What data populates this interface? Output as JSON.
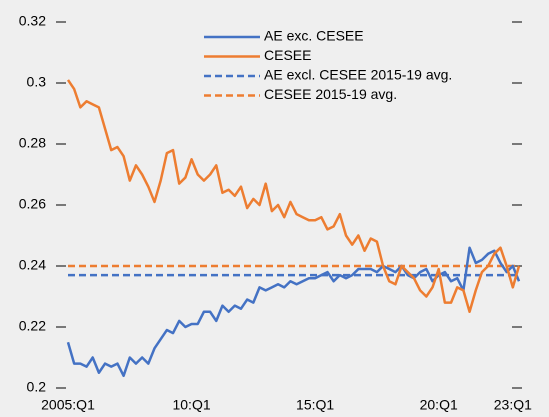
{
  "chart_data": {
    "type": "line",
    "x": [
      2005,
      2005.25,
      2005.5,
      2005.75,
      2006,
      2006.25,
      2006.5,
      2006.75,
      2007,
      2007.25,
      2007.5,
      2007.75,
      2008,
      2008.25,
      2008.5,
      2008.75,
      2009,
      2009.25,
      2009.5,
      2009.75,
      2010,
      2010.25,
      2010.5,
      2010.75,
      2011,
      2011.25,
      2011.5,
      2011.75,
      2012,
      2012.25,
      2012.5,
      2012.75,
      2013,
      2013.25,
      2013.5,
      2013.75,
      2014,
      2014.25,
      2014.5,
      2014.75,
      2015,
      2015.25,
      2015.5,
      2015.75,
      2016,
      2016.25,
      2016.5,
      2016.75,
      2017,
      2017.25,
      2017.5,
      2017.75,
      2018,
      2018.25,
      2018.5,
      2018.75,
      2019,
      2019.25,
      2019.5,
      2019.75,
      2020,
      2020.25,
      2020.5,
      2020.75,
      2021,
      2021.25,
      2021.5,
      2021.75,
      2022,
      2022.25,
      2022.5,
      2022.75,
      2023,
      2023.25
    ],
    "series": [
      {
        "name": "AE exc. CESEE",
        "color": "#4472c4",
        "values": [
          0.215,
          0.208,
          0.208,
          0.207,
          0.21,
          0.205,
          0.208,
          0.207,
          0.208,
          0.204,
          0.21,
          0.208,
          0.21,
          0.208,
          0.213,
          0.216,
          0.219,
          0.218,
          0.222,
          0.22,
          0.221,
          0.221,
          0.225,
          0.225,
          0.222,
          0.227,
          0.225,
          0.227,
          0.226,
          0.229,
          0.228,
          0.233,
          0.232,
          0.233,
          0.234,
          0.233,
          0.235,
          0.234,
          0.235,
          0.236,
          0.236,
          0.237,
          0.238,
          0.235,
          0.237,
          0.236,
          0.237,
          0.239,
          0.239,
          0.239,
          0.238,
          0.24,
          0.239,
          0.238,
          0.24,
          0.237,
          0.236,
          0.238,
          0.239,
          0.235,
          0.237,
          0.238,
          0.235,
          0.236,
          0.232,
          0.246,
          0.241,
          0.242,
          0.244,
          0.245,
          0.241,
          0.238,
          0.24,
          0.235
        ]
      },
      {
        "name": "CESEE",
        "color": "#ed7d31",
        "values": [
          0.301,
          0.298,
          0.292,
          0.294,
          0.293,
          0.292,
          0.285,
          0.278,
          0.279,
          0.276,
          0.268,
          0.273,
          0.27,
          0.266,
          0.261,
          0.268,
          0.277,
          0.278,
          0.267,
          0.269,
          0.275,
          0.27,
          0.268,
          0.27,
          0.273,
          0.264,
          0.265,
          0.263,
          0.266,
          0.259,
          0.262,
          0.26,
          0.267,
          0.258,
          0.26,
          0.256,
          0.261,
          0.257,
          0.256,
          0.255,
          0.255,
          0.256,
          0.252,
          0.253,
          0.257,
          0.25,
          0.247,
          0.25,
          0.245,
          0.249,
          0.248,
          0.24,
          0.235,
          0.234,
          0.24,
          0.238,
          0.236,
          0.232,
          0.23,
          0.233,
          0.239,
          0.228,
          0.228,
          0.233,
          0.232,
          0.225,
          0.232,
          0.238,
          0.24,
          0.244,
          0.246,
          0.24,
          0.233,
          0.24
        ]
      }
    ],
    "reference_lines": [
      {
        "name": "AE excl. CESEE 2015-19 avg.",
        "color": "#4472c4",
        "value": 0.237
      },
      {
        "name": "CESEE 2015-19 avg.",
        "color": "#ed7d31",
        "value": 0.24
      }
    ],
    "xlim": [
      2005,
      2023.25
    ],
    "xticks": [
      {
        "value": 2005,
        "label": "2005:Q1"
      },
      {
        "value": 2010,
        "label": "10:Q1"
      },
      {
        "value": 2015,
        "label": "15:Q1"
      },
      {
        "value": 2020,
        "label": "20:Q1"
      },
      {
        "value": 2023,
        "label": "23:Q1"
      }
    ],
    "ylim": [
      0.2,
      0.32
    ],
    "yticks": [
      {
        "value": 0.2,
        "label": "0.2"
      },
      0.22,
      0.24,
      0.26,
      0.28,
      {
        "value": 0.3,
        "label": "0.3"
      },
      0.32
    ],
    "legend": "top"
  }
}
